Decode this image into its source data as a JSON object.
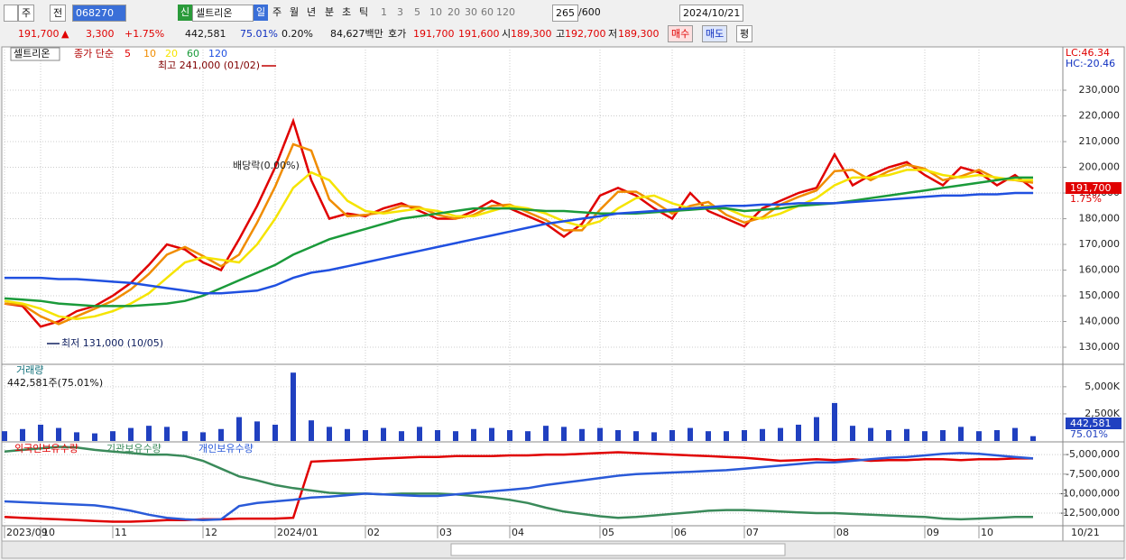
{
  "toolbar": {
    "period": "주",
    "market": "전",
    "code": "068270",
    "badge": "신",
    "name": "셀트리온",
    "intervals": [
      "일",
      "주",
      "월",
      "년",
      "분",
      "초",
      "틱"
    ],
    "multipliers": [
      "1",
      "3",
      "5",
      "10",
      "20",
      "30",
      "60",
      "120"
    ],
    "count": "265",
    "count_max": "/600",
    "date": "2024/10/21"
  },
  "quote": {
    "price": "191,700",
    "arrow": "▲",
    "change": "3,300",
    "change_rate": "+1.75%",
    "volume": "442,581",
    "volume_rate": "75.01%",
    "turnover": "0.20%",
    "amount": "84,627백만",
    "bid_label": "호가",
    "ask": "191,700",
    "bid": "191,600",
    "open_label": "시",
    "open": "189,300",
    "high_label": "고",
    "high": "192,700",
    "low_label": "저",
    "low": "189,300",
    "buy": "매수",
    "sell": "매도",
    "avg": "평"
  },
  "chart_data": [
    {
      "type": "line",
      "title": "셀트리온",
      "subtitle": "종가 단순",
      "series": [
        {
          "name": "5",
          "color": "#e00000",
          "values": [
            147000,
            146000,
            138000,
            140000,
            144000,
            146000,
            150000,
            155000,
            162000,
            170000,
            168000,
            163000,
            160000,
            172000,
            185000,
            200000,
            218000,
            195000,
            180000,
            182000,
            181000,
            184000,
            186000,
            183000,
            180000,
            180000,
            183000,
            187000,
            184000,
            181000,
            178000,
            173000,
            178000,
            189000,
            192000,
            189000,
            184000,
            180000,
            190000,
            183000,
            180000,
            177000,
            184000,
            187000,
            190000,
            192000,
            205000,
            193000,
            197000,
            200000,
            202000,
            197000,
            193000,
            200000,
            198000,
            193000,
            197000,
            191700
          ]
        },
        {
          "name": "10",
          "color": "#f08c00",
          "values": [
            147000,
            146500,
            142000,
            139000,
            142000,
            145000,
            148000,
            152500,
            158500,
            166000,
            169000,
            165500,
            161500,
            166000,
            178500,
            192500,
            209000,
            206500,
            187500,
            181000,
            181500,
            182500,
            185000,
            184500,
            181500,
            180000,
            181500,
            185000,
            185500,
            182500,
            179500,
            175500,
            175500,
            183500,
            190500,
            190500,
            186500,
            182000,
            185000,
            186500,
            181500,
            178500,
            180500,
            185500,
            188500,
            191000,
            198500,
            199000,
            195000,
            198500,
            201000,
            199500,
            195000,
            196500,
            199000,
            195500,
            195000,
            194000
          ]
        },
        {
          "name": "20",
          "color": "#f5e400",
          "values": [
            148000,
            147000,
            145000,
            142000,
            141000,
            142000,
            144000,
            147000,
            151000,
            157000,
            163000,
            165000,
            164000,
            163000,
            170000,
            180000,
            192000,
            198000,
            195000,
            187000,
            183000,
            182000,
            183000,
            184000,
            183000,
            181000,
            181000,
            183000,
            185000,
            184000,
            182000,
            179000,
            177000,
            179000,
            184000,
            188000,
            189000,
            186000,
            184000,
            185000,
            184000,
            181000,
            180000,
            182000,
            185000,
            188000,
            193000,
            196000,
            196000,
            197000,
            199000,
            199000,
            197000,
            196000,
            197000,
            196000,
            195000,
            195000
          ]
        },
        {
          "name": "60",
          "color": "#1a9a3a",
          "values": [
            149000,
            148500,
            148000,
            147000,
            146500,
            146000,
            146000,
            146000,
            146500,
            147000,
            148000,
            150000,
            153000,
            156000,
            159000,
            162000,
            166000,
            169000,
            172000,
            174000,
            176000,
            178000,
            180000,
            181000,
            182000,
            183000,
            184000,
            184000,
            184000,
            183500,
            183000,
            183000,
            182500,
            182000,
            182000,
            182000,
            182500,
            183000,
            183500,
            184000,
            184000,
            183000,
            183500,
            184000,
            185000,
            185500,
            186000,
            187000,
            188000,
            189000,
            190000,
            191000,
            192000,
            193000,
            194000,
            195000,
            196000,
            196000
          ]
        },
        {
          "name": "120",
          "color": "#2050e0",
          "values": [
            157000,
            157000,
            157000,
            156500,
            156500,
            156000,
            155500,
            155000,
            154000,
            153000,
            152000,
            151000,
            151000,
            151500,
            152000,
            154000,
            157000,
            159000,
            160000,
            161500,
            163000,
            164500,
            166000,
            167500,
            169000,
            170500,
            172000,
            173500,
            175000,
            176500,
            178000,
            179000,
            180000,
            181000,
            182000,
            182500,
            183000,
            183500,
            184000,
            184500,
            185000,
            185000,
            185500,
            185500,
            186000,
            186000,
            186000,
            186500,
            187000,
            187500,
            188000,
            188500,
            189000,
            189000,
            189500,
            189500,
            190000,
            190000
          ]
        }
      ],
      "ylim": [
        123700,
        245800
      ],
      "yticks": [
        {
          "value": 130000,
          "label": "130,000"
        },
        {
          "value": 140000,
          "label": "140,000"
        },
        {
          "value": 150000,
          "label": "150,000"
        },
        {
          "value": 160000,
          "label": "160,000"
        },
        {
          "value": 170000,
          "label": "170,000"
        },
        {
          "value": 180000,
          "label": "180,000"
        },
        {
          "value": 190000,
          "label": "190,000"
        },
        {
          "value": 200000,
          "label": "200,000"
        },
        {
          "value": 210000,
          "label": "210,000"
        },
        {
          "value": 220000,
          "label": "220,000"
        },
        {
          "value": 230000,
          "label": "230,000"
        }
      ],
      "grid": true,
      "annotations": {
        "high": "최고 241,000 (01/02)",
        "low": "최저 131,000 (10/05)",
        "dividend": "배당락(0.00%)",
        "lc": "LC:46.34",
        "hc": "HC:-20.46",
        "price_tag": "191,700",
        "change_tag": "1.75%"
      }
    },
    {
      "type": "bar",
      "title": "거래량",
      "subtitle": "442,581주(75.01%)",
      "color": "#2040c0",
      "values": [
        900,
        1100,
        1500,
        1200,
        800,
        700,
        900,
        1200,
        1400,
        1300,
        900,
        800,
        1100,
        2200,
        1800,
        1500,
        6300,
        1900,
        1300,
        1100,
        1000,
        1200,
        900,
        1300,
        1000,
        900,
        1100,
        1200,
        1000,
        900,
        1400,
        1300,
        1100,
        1200,
        1000,
        900,
        800,
        1000,
        1200,
        900,
        900,
        1000,
        1100,
        1200,
        1500,
        2200,
        3500,
        1400,
        1200,
        1000,
        1100,
        900,
        1000,
        1300,
        900,
        1000,
        1200,
        442.581
      ],
      "ylim": [
        0,
        6900
      ],
      "yticks": [
        {
          "value": 2500,
          "label": "2,500K"
        },
        {
          "value": 5000,
          "label": "5,000K"
        }
      ],
      "grid": true,
      "annotations": {
        "volume_tag": "442,581",
        "rate_tag": "75.01%"
      }
    },
    {
      "type": "line",
      "categories": [
        "2023/09",
        null,
        "10",
        null,
        null,
        null,
        "11",
        null,
        null,
        null,
        null,
        "12",
        null,
        null,
        null,
        "2024/01",
        null,
        null,
        null,
        null,
        "02",
        null,
        null,
        null,
        "03",
        null,
        null,
        null,
        "04",
        null,
        null,
        null,
        null,
        "05",
        null,
        null,
        null,
        "06",
        null,
        null,
        null,
        "07",
        null,
        null,
        null,
        null,
        "08",
        null,
        null,
        null,
        null,
        "09",
        null,
        null,
        "10",
        null,
        null,
        null
      ],
      "x_end_label": "10/21",
      "series": [
        {
          "name": "외국인보유수량",
          "color": "#e00000",
          "values": [
            -13000000,
            -13100000,
            -13200000,
            -13300000,
            -13400000,
            -13500000,
            -13600000,
            -13600000,
            -13500000,
            -13400000,
            -13400000,
            -13300000,
            -13300000,
            -13200000,
            -13200000,
            -13200000,
            -13100000,
            -5900000,
            -5800000,
            -5700000,
            -5600000,
            -5500000,
            -5400000,
            -5300000,
            -5300000,
            -5200000,
            -5200000,
            -5200000,
            -5100000,
            -5100000,
            -5000000,
            -5000000,
            -4900000,
            -4800000,
            -4700000,
            -4800000,
            -4900000,
            -5000000,
            -5100000,
            -5200000,
            -5300000,
            -5400000,
            -5600000,
            -5800000,
            -5700000,
            -5600000,
            -5700000,
            -5600000,
            -5800000,
            -5700000,
            -5700000,
            -5600000,
            -5600000,
            -5700000,
            -5600000,
            -5600000,
            -5500000,
            -5500000
          ]
        },
        {
          "name": "기관보유수량",
          "color": "#3a8a5a",
          "values": [
            -4600000,
            -4400000,
            -4200000,
            -4000000,
            -4100000,
            -4400000,
            -4600000,
            -4800000,
            -5000000,
            -5000000,
            -5200000,
            -5800000,
            -6800000,
            -7800000,
            -8300000,
            -8900000,
            -9300000,
            -9600000,
            -9900000,
            -10000000,
            -10000000,
            -10100000,
            -10000000,
            -10000000,
            -10000000,
            -10100000,
            -10300000,
            -10500000,
            -10800000,
            -11200000,
            -11800000,
            -12300000,
            -12600000,
            -12900000,
            -13100000,
            -13000000,
            -12800000,
            -12600000,
            -12400000,
            -12200000,
            -12100000,
            -12100000,
            -12200000,
            -12300000,
            -12400000,
            -12500000,
            -12500000,
            -12600000,
            -12700000,
            -12800000,
            -12900000,
            -13000000,
            -13200000,
            -13300000,
            -13200000,
            -13100000,
            -13000000,
            -13000000
          ]
        },
        {
          "name": "개인보유수량",
          "color": "#2a5ad8",
          "values": [
            -11000000,
            -11100000,
            -11200000,
            -11300000,
            -11400000,
            -11500000,
            -11800000,
            -12200000,
            -12700000,
            -13100000,
            -13300000,
            -13400000,
            -13300000,
            -11600000,
            -11200000,
            -11000000,
            -10800000,
            -10500000,
            -10400000,
            -10200000,
            -10000000,
            -10100000,
            -10200000,
            -10300000,
            -10300000,
            -10100000,
            -9900000,
            -9700000,
            -9500000,
            -9300000,
            -8900000,
            -8600000,
            -8300000,
            -8000000,
            -7700000,
            -7500000,
            -7400000,
            -7300000,
            -7200000,
            -7100000,
            -7000000,
            -6800000,
            -6600000,
            -6400000,
            -6200000,
            -6000000,
            -6000000,
            -5800000,
            -5600000,
            -5400000,
            -5300000,
            -5100000,
            -4900000,
            -4800000,
            -4900000,
            -5100000,
            -5300000,
            -5500000
          ]
        }
      ],
      "ylim": [
        -14000000,
        -3600000
      ],
      "yticks": [
        {
          "value": -12500000,
          "label": "-12,500,000"
        },
        {
          "value": -10000000,
          "label": "-10,000,000"
        },
        {
          "value": -7500000,
          "label": "-7,500,000"
        },
        {
          "value": -5000000,
          "label": "-5,000,000"
        }
      ],
      "grid": true
    }
  ]
}
